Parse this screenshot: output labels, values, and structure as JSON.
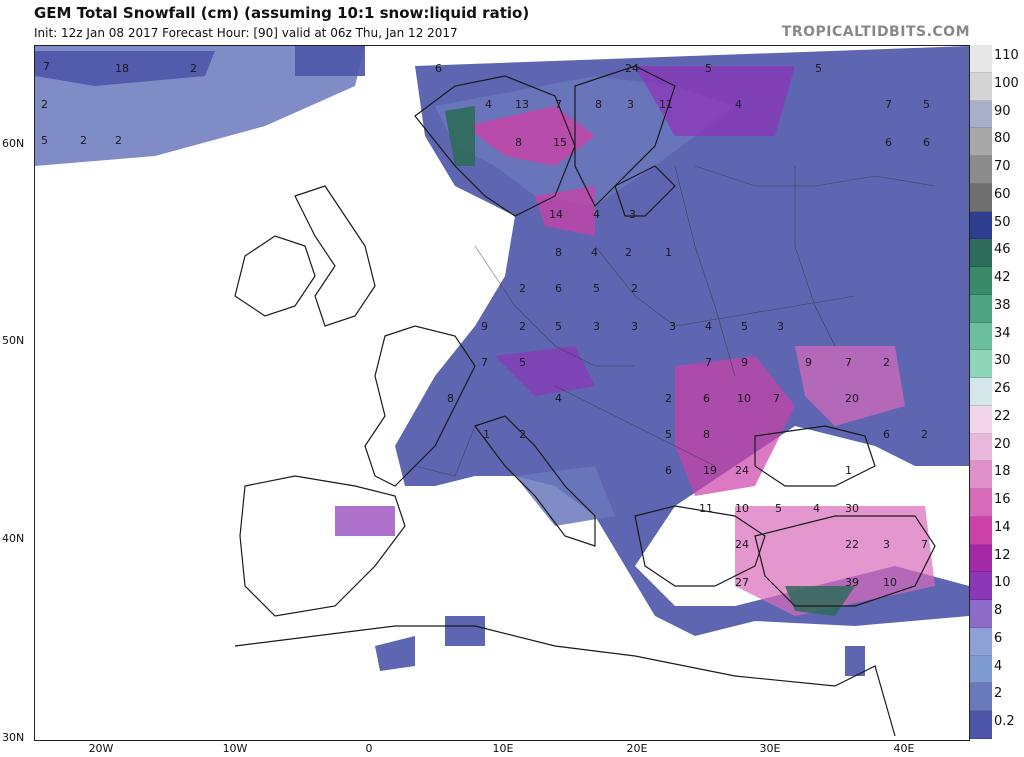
{
  "header": {
    "title": "GEM Total Snowfall (cm) (assuming 10:1 snow:liquid ratio)",
    "subtitle": "Init: 12z Jan 08 2017   Forecast Hour: [90]   valid at 06z Thu, Jan 12 2017",
    "site": "TROPICALTIDBITS.COM"
  },
  "axes": {
    "lat_labels": [
      "60N",
      "50N",
      "40N",
      "30N"
    ],
    "lon_labels": [
      "20W",
      "10W",
      "0",
      "10E",
      "20E",
      "30E",
      "40E"
    ]
  },
  "legend": {
    "labels": [
      "110",
      "100",
      "90",
      "80",
      "70",
      "60",
      "50",
      "46",
      "42",
      "38",
      "34",
      "30",
      "26",
      "22",
      "20",
      "18",
      "16",
      "14",
      "12",
      "10",
      "8",
      "6",
      "4",
      "2",
      "0.2"
    ],
    "colors": [
      "#e8e8e8",
      "#d4d4d4",
      "#a8b0c8",
      "#a8a8a8",
      "#8c8c8c",
      "#707070",
      "#2f3f8f",
      "#2e6b5a",
      "#3a8a6a",
      "#4fa383",
      "#6cbf9d",
      "#8fd4b6",
      "#d5e6e8",
      "#f2d5ea",
      "#eab8dc",
      "#e090c8",
      "#d86aba",
      "#cc42a8",
      "#a22aa8",
      "#8c36b8",
      "#8c6cc8",
      "#8ea0d8",
      "#7f9cd2",
      "#6a78bc",
      "#4c55a8"
    ]
  },
  "map_values": {
    "scandinavia": [
      "7",
      "18",
      "2",
      "2",
      "5",
      "2",
      "2",
      "6",
      "4",
      "13",
      "7",
      "8",
      "15",
      "24",
      "8",
      "3",
      "11",
      "5",
      "4",
      "5",
      "7",
      "5",
      "6",
      "6",
      "14",
      "4",
      "3"
    ],
    "central_europe": [
      "8",
      "4",
      "2",
      "1",
      "2",
      "6",
      "5",
      "2",
      "9",
      "2",
      "7",
      "5",
      "5",
      "3",
      "3",
      "3",
      "4",
      "5",
      "3",
      "7",
      "9",
      "8",
      "1",
      "2",
      "4"
    ],
    "southeast_europe": [
      "2",
      "6",
      "10",
      "5",
      "8",
      "19",
      "24",
      "6",
      "11",
      "10",
      "7",
      "20",
      "9",
      "7",
      "2",
      "5",
      "4",
      "30",
      "24",
      "27",
      "39",
      "22",
      "7",
      "10",
      "3",
      "2",
      "1",
      "6"
    ]
  },
  "colors": {
    "land": "#ffffff",
    "sea": "#ffffff",
    "coast": "#1a1a1a",
    "snow_light": "#4c55a8",
    "snow_mid": "#6a78bc",
    "snow_heavy": "#a22aa8"
  }
}
